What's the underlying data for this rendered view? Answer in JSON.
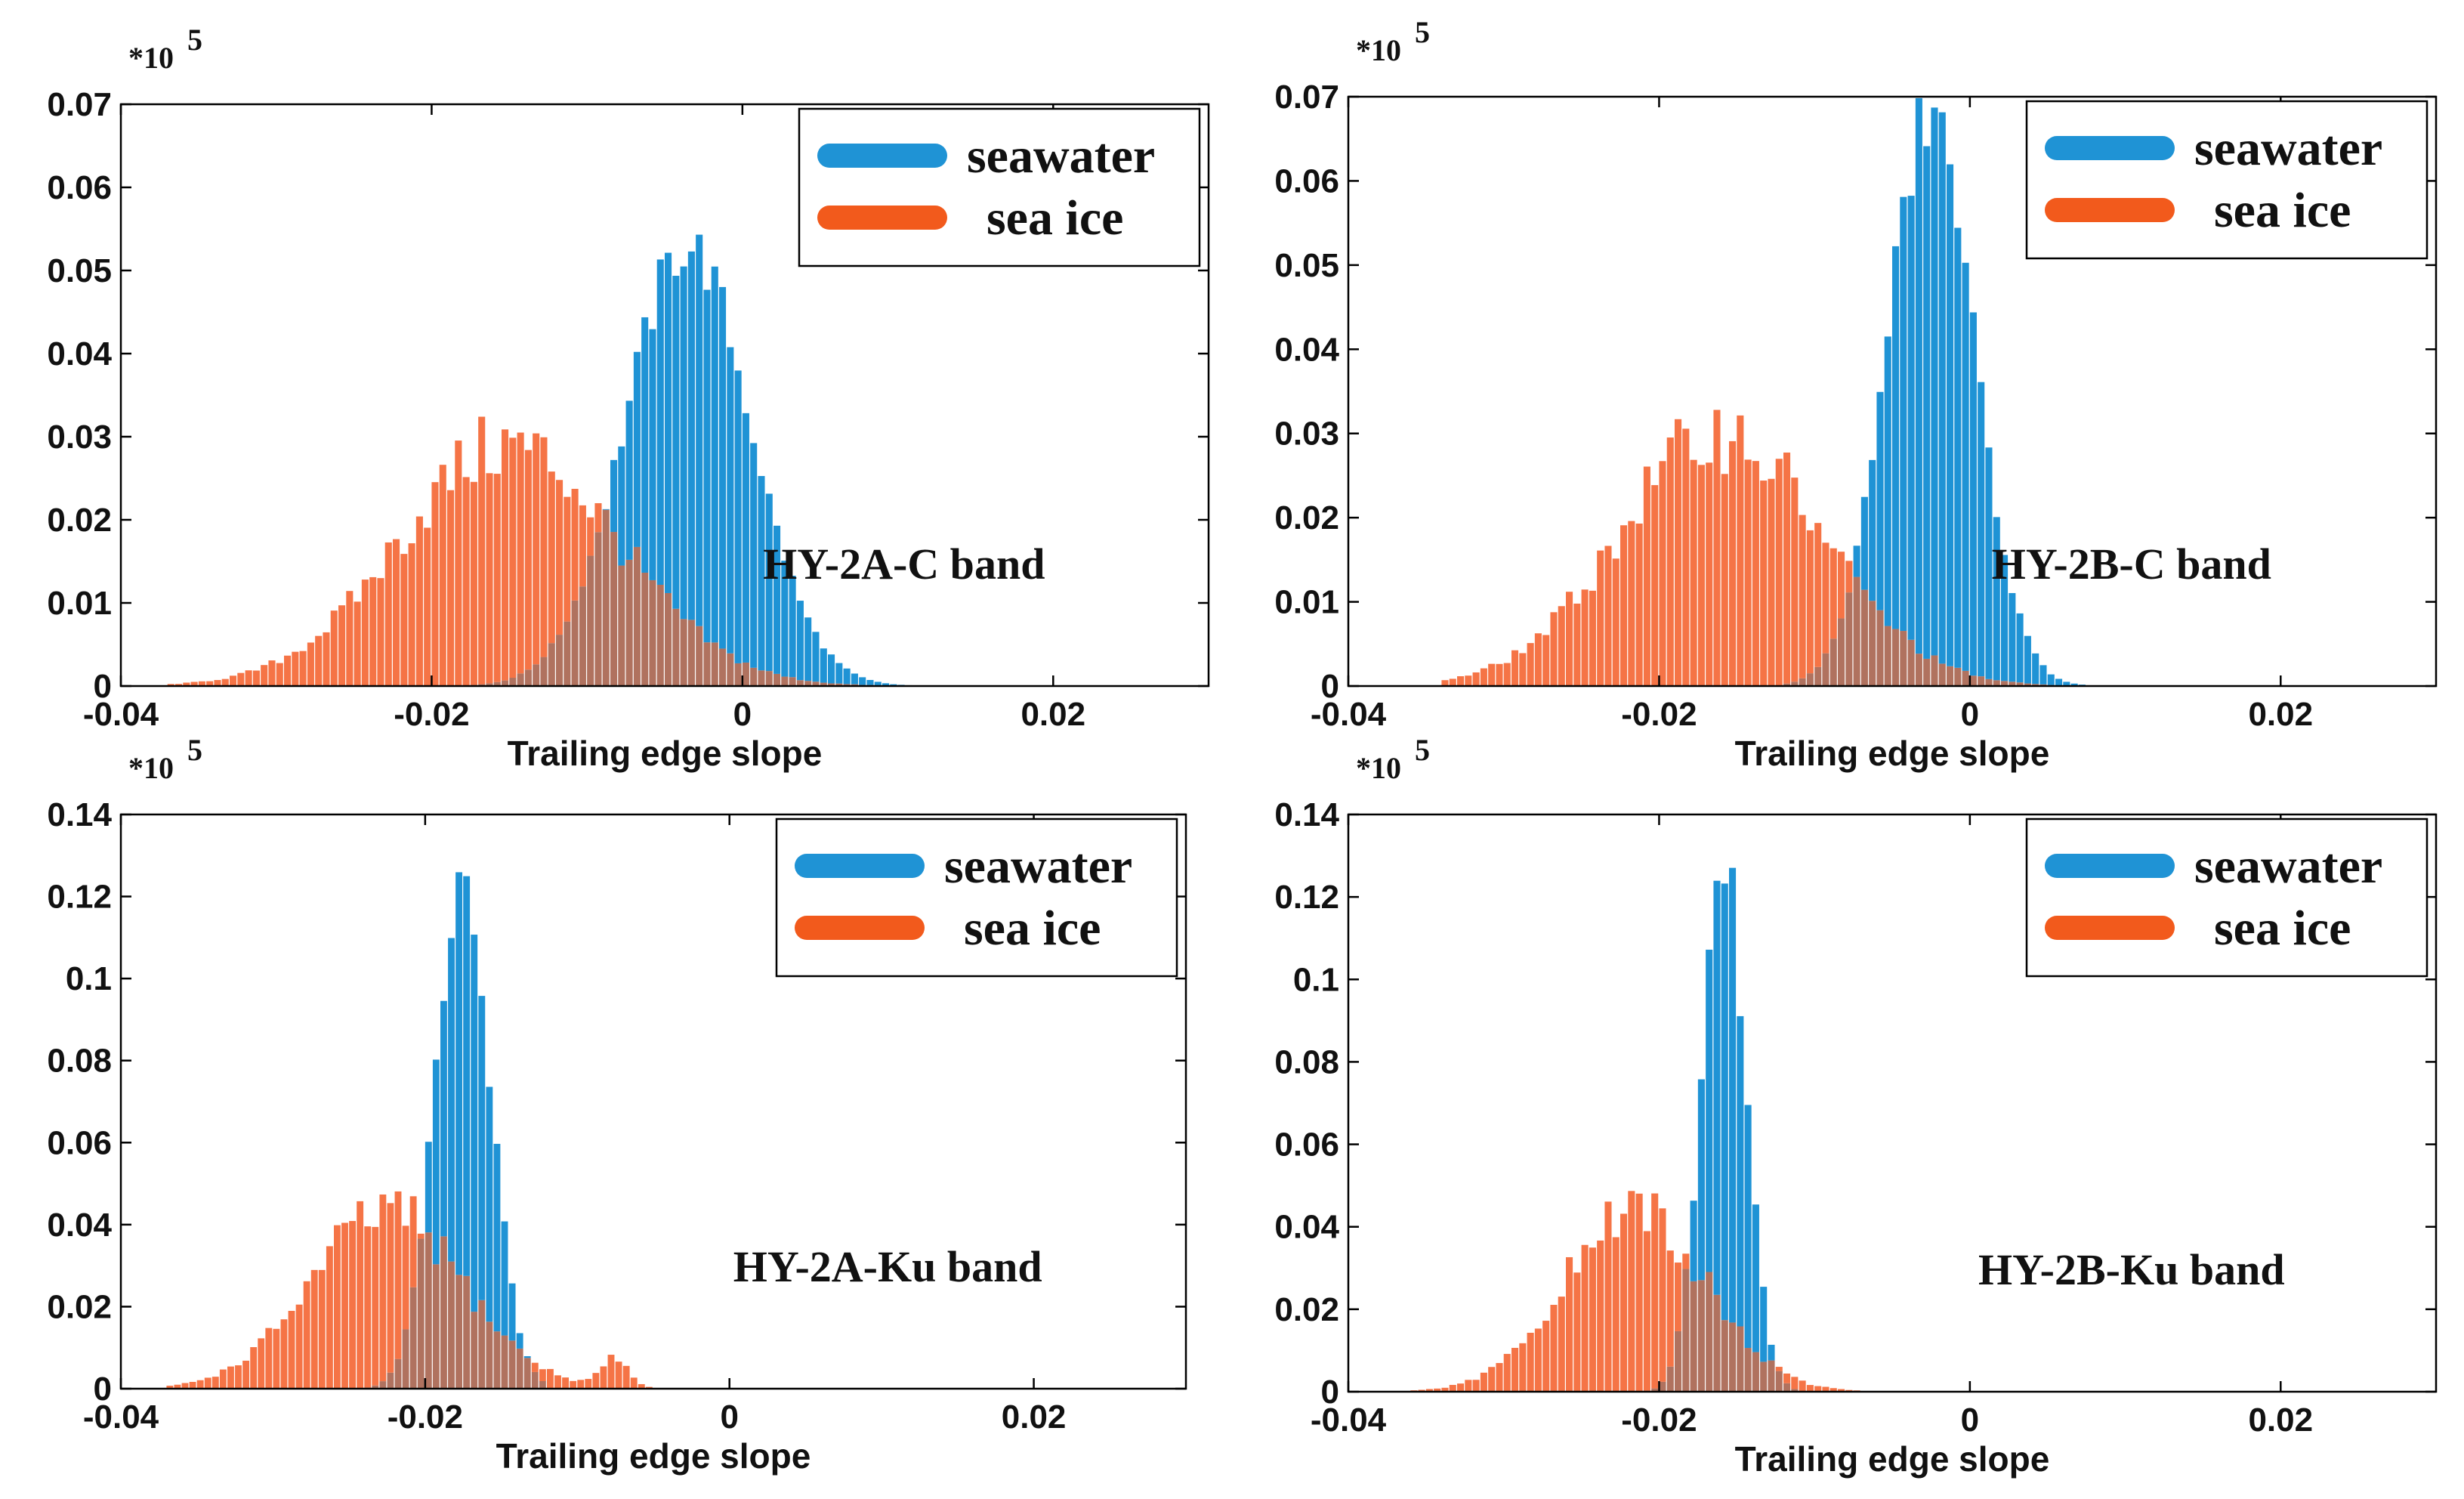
{
  "colors": {
    "seawater": "#1f93d5",
    "sea_ice": "#f57446",
    "legend_sea_ice": "#f25a1c",
    "overlap": "#b0725f",
    "axis": "#000000",
    "background": "#ffffff"
  },
  "chart_data": [
    {
      "type": "bar",
      "panel_label": "HY-2A-C band",
      "xlabel": "Trailing edge slope",
      "ylabel": "",
      "scale_prefix": "*10",
      "scale_exponent": "5",
      "xlim": [
        -0.04,
        0.03
      ],
      "ylim": [
        0,
        0.07
      ],
      "xticks": [
        -0.04,
        -0.02,
        0,
        0.02
      ],
      "xtick_labels": [
        "-0.04",
        "-0.02",
        "0",
        "0.02"
      ],
      "yticks": [
        0,
        0.01,
        0.02,
        0.03,
        0.04,
        0.05,
        0.06,
        0.07
      ],
      "ytick_labels": [
        "0",
        "0.01",
        "0.02",
        "0.03",
        "0.04",
        "0.05",
        "0.06",
        "0.07"
      ],
      "legend_position": "top-right",
      "series": [
        {
          "name": "seawater",
          "mu": -0.0035,
          "sigma": 0.004,
          "peak": 0.053,
          "range": [
            -0.018,
            0.012
          ]
        },
        {
          "name": "sea ice",
          "mu": -0.015,
          "sigma": 0.007,
          "peak": 0.029,
          "range": [
            -0.037,
            0.014
          ]
        }
      ]
    },
    {
      "type": "bar",
      "panel_label": "HY-2B-C band",
      "xlabel": "Trailing edge slope",
      "ylabel": "",
      "scale_prefix": "*10",
      "scale_exponent": "5",
      "xlim": [
        -0.04,
        0.03
      ],
      "ylim": [
        0,
        0.07
      ],
      "xticks": [
        -0.04,
        -0.02,
        0,
        0.02
      ],
      "xtick_labels": [
        "-0.04",
        "-0.02",
        "0",
        "0.02"
      ],
      "yticks": [
        0,
        0.01,
        0.02,
        0.03,
        0.04,
        0.05,
        0.06,
        0.07
      ],
      "ytick_labels": [
        "0",
        "0.01",
        "0.02",
        "0.03",
        "0.04",
        "0.05",
        "0.06",
        "0.07"
      ],
      "legend_position": "top-right",
      "series": [
        {
          "name": "seawater",
          "mu": -0.0025,
          "sigma": 0.0028,
          "peak": 0.068,
          "range": [
            -0.012,
            0.008
          ]
        },
        {
          "name": "sea ice",
          "mu": -0.016,
          "sigma": 0.0065,
          "peak": 0.03,
          "range": [
            -0.034,
            0.014
          ]
        }
      ]
    },
    {
      "type": "bar",
      "panel_label": "HY-2A-Ku band",
      "xlabel": "Trailing edge slope",
      "ylabel": "",
      "scale_prefix": "*10",
      "scale_exponent": "5",
      "xlim": [
        -0.04,
        0.03
      ],
      "ylim": [
        0,
        0.14
      ],
      "xticks": [
        -0.04,
        -0.02,
        0,
        0.02
      ],
      "xtick_labels": [
        "-0.04",
        "-0.02",
        "0",
        "0.02"
      ],
      "yticks": [
        0,
        0.02,
        0.04,
        0.06,
        0.08,
        0.1,
        0.12,
        0.14
      ],
      "ytick_labels": [
        "0",
        "0.02",
        "0.04",
        "0.06",
        "0.08",
        "0.1",
        "0.12",
        "0.14"
      ],
      "legend_position": "top-right",
      "series": [
        {
          "name": "seawater",
          "mu": -0.0175,
          "sigma": 0.0018,
          "peak": 0.124,
          "range": [
            -0.024,
            -0.012
          ]
        },
        {
          "name": "sea ice",
          "mu": -0.0225,
          "sigma": 0.005,
          "peak": 0.043,
          "range": [
            -0.037,
            0.002
          ],
          "bump": {
            "mu": -0.0075,
            "sigma": 0.0009,
            "peak": 0.007
          }
        }
      ]
    },
    {
      "type": "bar",
      "panel_label": "HY-2B-Ku band",
      "xlabel": "Trailing edge slope",
      "ylabel": "",
      "scale_prefix": "*10",
      "scale_exponent": "5",
      "xlim": [
        -0.04,
        0.03
      ],
      "ylim": [
        0,
        0.14
      ],
      "xticks": [
        -0.04,
        -0.02,
        0,
        0.02
      ],
      "xtick_labels": [
        "-0.04",
        "-0.02",
        "0",
        "0.02"
      ],
      "yticks": [
        0,
        0.02,
        0.04,
        0.06,
        0.08,
        0.1,
        0.12,
        0.14
      ],
      "ytick_labels": [
        "0",
        "0.02",
        "0.04",
        "0.06",
        "0.08",
        "0.1",
        "0.12",
        "0.14"
      ],
      "legend_position": "top-right",
      "series": [
        {
          "name": "seawater",
          "mu": -0.0158,
          "sigma": 0.0014,
          "peak": 0.129,
          "range": [
            -0.021,
            -0.011
          ]
        },
        {
          "name": "sea ice",
          "mu": -0.0215,
          "sigma": 0.0045,
          "peak": 0.044,
          "range": [
            -0.036,
            0.002
          ]
        }
      ]
    }
  ]
}
